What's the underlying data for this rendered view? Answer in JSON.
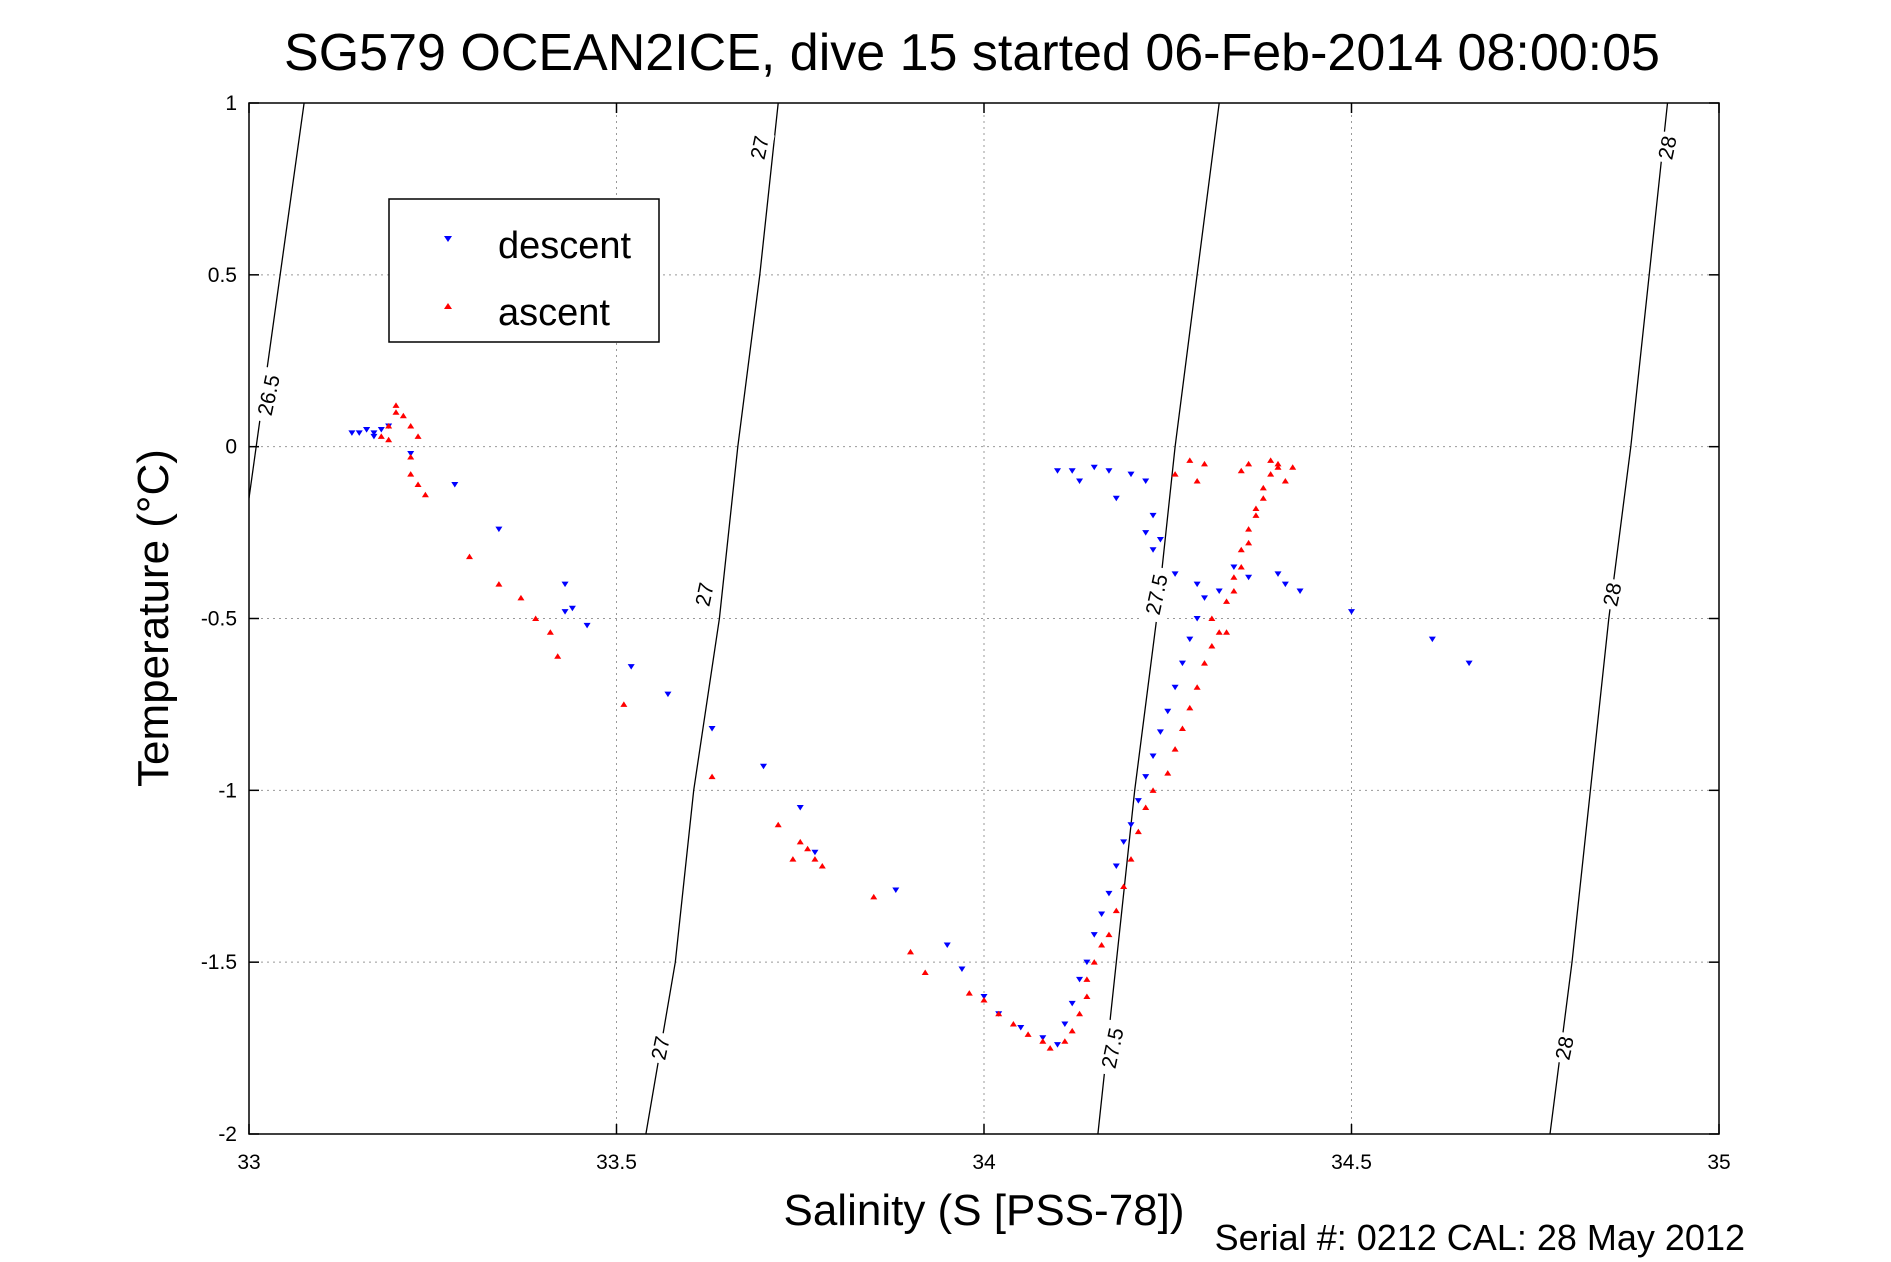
{
  "chart_data": {
    "type": "scatter",
    "title": "SG579 OCEAN2ICE, dive 15 started 06-Feb-2014 08:00:05",
    "xlabel": "Salinity (S [PSS-78])",
    "ylabel": "Temperature (°C)",
    "xlim": [
      33,
      35
    ],
    "ylim": [
      -2,
      1
    ],
    "x_ticks": [
      "33",
      "33.5",
      "34",
      "34.5",
      "35"
    ],
    "y_ticks": [
      "-2",
      "-1.5",
      "-1",
      "-0.5",
      "0",
      "0.5",
      "1"
    ],
    "grid": true,
    "legend_position": "top-left",
    "footer": "Serial #: 0212  CAL: 28 May 2012",
    "colors": {
      "descent": "#0000ff",
      "ascent": "#ff0000",
      "contour": "#000000"
    },
    "density_contours": [
      {
        "label": "26.5",
        "points": [
          [
            33.0,
            -0.15
          ],
          [
            33.075,
            1.0
          ]
        ]
      },
      {
        "label": "27",
        "points": [
          [
            33.54,
            -2.0
          ],
          [
            33.58,
            -1.5
          ],
          [
            33.605,
            -1.0
          ],
          [
            33.64,
            -0.5
          ],
          [
            33.665,
            0.0
          ],
          [
            33.695,
            0.5
          ],
          [
            33.72,
            1.0
          ]
        ]
      },
      {
        "label": "27.5",
        "points": [
          [
            34.155,
            -2.0
          ],
          [
            34.18,
            -1.5
          ],
          [
            34.205,
            -1.0
          ],
          [
            34.235,
            -0.5
          ],
          [
            34.26,
            0.0
          ],
          [
            34.29,
            0.5
          ],
          [
            34.32,
            1.0
          ]
        ]
      },
      {
        "label": "28",
        "points": [
          [
            34.77,
            -2.0
          ],
          [
            34.8,
            -1.5
          ],
          [
            34.825,
            -1.0
          ],
          [
            34.85,
            -0.5
          ],
          [
            34.88,
            0.0
          ],
          [
            34.905,
            0.5
          ],
          [
            34.93,
            1.0
          ]
        ]
      }
    ],
    "contour_labels": [
      {
        "text": "26.5",
        "at": [
          33.027,
          0.15
        ]
      },
      {
        "text": "27",
        "at": [
          33.56,
          -1.75
        ]
      },
      {
        "text": "27",
        "at": [
          33.62,
          -0.43
        ]
      },
      {
        "text": "27",
        "at": [
          33.695,
          0.87
        ]
      },
      {
        "text": "27.5",
        "at": [
          34.175,
          -1.75
        ]
      },
      {
        "text": "27.5",
        "at": [
          34.235,
          -0.43
        ]
      },
      {
        "text": "28",
        "at": [
          34.79,
          -1.75
        ]
      },
      {
        "text": "28",
        "at": [
          34.855,
          -0.43
        ]
      },
      {
        "text": "28",
        "at": [
          34.93,
          0.87
        ]
      }
    ],
    "series": [
      {
        "name": "descent",
        "marker": "triangle-down",
        "points": [
          [
            33.14,
            0.04
          ],
          [
            33.15,
            0.04
          ],
          [
            33.16,
            0.05
          ],
          [
            33.17,
            0.04
          ],
          [
            33.18,
            0.05
          ],
          [
            33.19,
            0.06
          ],
          [
            33.17,
            0.03
          ],
          [
            33.16,
            0.05
          ],
          [
            33.22,
            -0.02
          ],
          [
            33.28,
            -0.11
          ],
          [
            33.34,
            -0.24
          ],
          [
            33.43,
            -0.4
          ],
          [
            33.44,
            -0.47
          ],
          [
            33.43,
            -0.48
          ],
          [
            33.46,
            -0.52
          ],
          [
            33.52,
            -0.64
          ],
          [
            33.57,
            -0.72
          ],
          [
            33.63,
            -0.82
          ],
          [
            33.7,
            -0.93
          ],
          [
            33.75,
            -1.05
          ],
          [
            33.77,
            -1.18
          ],
          [
            33.88,
            -1.29
          ],
          [
            33.95,
            -1.45
          ],
          [
            33.97,
            -1.52
          ],
          [
            34.0,
            -1.6
          ],
          [
            34.02,
            -1.65
          ],
          [
            34.05,
            -1.69
          ],
          [
            34.08,
            -1.72
          ],
          [
            34.1,
            -1.74
          ],
          [
            34.11,
            -1.68
          ],
          [
            34.12,
            -1.62
          ],
          [
            34.13,
            -1.55
          ],
          [
            34.14,
            -1.5
          ],
          [
            34.15,
            -1.42
          ],
          [
            34.16,
            -1.36
          ],
          [
            34.17,
            -1.3
          ],
          [
            34.18,
            -1.22
          ],
          [
            34.19,
            -1.15
          ],
          [
            34.2,
            -1.1
          ],
          [
            34.21,
            -1.03
          ],
          [
            34.22,
            -0.96
          ],
          [
            34.23,
            -0.9
          ],
          [
            34.24,
            -0.83
          ],
          [
            34.25,
            -0.77
          ],
          [
            34.26,
            -0.7
          ],
          [
            34.27,
            -0.63
          ],
          [
            34.28,
            -0.56
          ],
          [
            34.29,
            -0.5
          ],
          [
            34.3,
            -0.44
          ],
          [
            34.29,
            -0.4
          ],
          [
            34.26,
            -0.37
          ],
          [
            34.23,
            -0.3
          ],
          [
            34.24,
            -0.27
          ],
          [
            34.22,
            -0.25
          ],
          [
            34.23,
            -0.2
          ],
          [
            34.32,
            -0.42
          ],
          [
            34.36,
            -0.38
          ],
          [
            34.34,
            -0.35
          ],
          [
            34.4,
            -0.37
          ],
          [
            34.41,
            -0.4
          ],
          [
            34.43,
            -0.42
          ],
          [
            34.1,
            -0.07
          ],
          [
            34.12,
            -0.07
          ],
          [
            34.13,
            -0.1
          ],
          [
            34.15,
            -0.06
          ],
          [
            34.17,
            -0.07
          ],
          [
            34.2,
            -0.08
          ],
          [
            34.22,
            -0.1
          ],
          [
            34.18,
            -0.15
          ],
          [
            34.5,
            -0.48
          ],
          [
            34.61,
            -0.56
          ],
          [
            34.66,
            -0.63
          ]
        ]
      },
      {
        "name": "ascent",
        "marker": "triangle-up",
        "points": [
          [
            33.18,
            0.03
          ],
          [
            33.19,
            0.06
          ],
          [
            33.2,
            0.1
          ],
          [
            33.2,
            0.12
          ],
          [
            33.21,
            0.09
          ],
          [
            33.22,
            0.06
          ],
          [
            33.23,
            0.03
          ],
          [
            33.19,
            0.02
          ],
          [
            33.22,
            -0.03
          ],
          [
            33.22,
            -0.08
          ],
          [
            33.23,
            -0.11
          ],
          [
            33.24,
            -0.14
          ],
          [
            33.3,
            -0.32
          ],
          [
            33.34,
            -0.4
          ],
          [
            33.37,
            -0.44
          ],
          [
            33.39,
            -0.5
          ],
          [
            33.41,
            -0.54
          ],
          [
            33.42,
            -0.61
          ],
          [
            33.51,
            -0.75
          ],
          [
            33.63,
            -0.96
          ],
          [
            33.72,
            -1.1
          ],
          [
            33.75,
            -1.15
          ],
          [
            33.76,
            -1.17
          ],
          [
            33.77,
            -1.2
          ],
          [
            33.74,
            -1.2
          ],
          [
            33.78,
            -1.22
          ],
          [
            33.85,
            -1.31
          ],
          [
            33.9,
            -1.47
          ],
          [
            33.92,
            -1.53
          ],
          [
            33.98,
            -1.59
          ],
          [
            34.0,
            -1.61
          ],
          [
            34.02,
            -1.65
          ],
          [
            34.04,
            -1.68
          ],
          [
            34.06,
            -1.71
          ],
          [
            34.08,
            -1.73
          ],
          [
            34.09,
            -1.75
          ],
          [
            34.11,
            -1.73
          ],
          [
            34.12,
            -1.7
          ],
          [
            34.13,
            -1.65
          ],
          [
            34.14,
            -1.6
          ],
          [
            34.14,
            -1.55
          ],
          [
            34.15,
            -1.5
          ],
          [
            34.16,
            -1.45
          ],
          [
            34.17,
            -1.42
          ],
          [
            34.18,
            -1.35
          ],
          [
            34.19,
            -1.28
          ],
          [
            34.2,
            -1.2
          ],
          [
            34.21,
            -1.12
          ],
          [
            34.22,
            -1.05
          ],
          [
            34.23,
            -1.0
          ],
          [
            34.25,
            -0.95
          ],
          [
            34.26,
            -0.88
          ],
          [
            34.27,
            -0.82
          ],
          [
            34.28,
            -0.76
          ],
          [
            34.29,
            -0.7
          ],
          [
            34.3,
            -0.63
          ],
          [
            34.31,
            -0.58
          ],
          [
            34.32,
            -0.54
          ],
          [
            34.33,
            -0.54
          ],
          [
            34.31,
            -0.5
          ],
          [
            34.33,
            -0.45
          ],
          [
            34.34,
            -0.38
          ],
          [
            34.35,
            -0.3
          ],
          [
            34.36,
            -0.24
          ],
          [
            34.37,
            -0.18
          ],
          [
            34.38,
            -0.12
          ],
          [
            34.39,
            -0.08
          ],
          [
            34.4,
            -0.05
          ],
          [
            34.39,
            -0.04
          ],
          [
            34.36,
            -0.05
          ],
          [
            34.3,
            -0.05
          ],
          [
            34.28,
            -0.04
          ],
          [
            34.26,
            -0.08
          ],
          [
            34.29,
            -0.1
          ],
          [
            34.35,
            -0.07
          ],
          [
            34.4,
            -0.06
          ],
          [
            34.41,
            -0.1
          ],
          [
            34.42,
            -0.06
          ],
          [
            34.38,
            -0.15
          ],
          [
            34.37,
            -0.2
          ],
          [
            34.36,
            -0.28
          ],
          [
            34.35,
            -0.35
          ],
          [
            34.34,
            -0.42
          ]
        ]
      }
    ]
  }
}
